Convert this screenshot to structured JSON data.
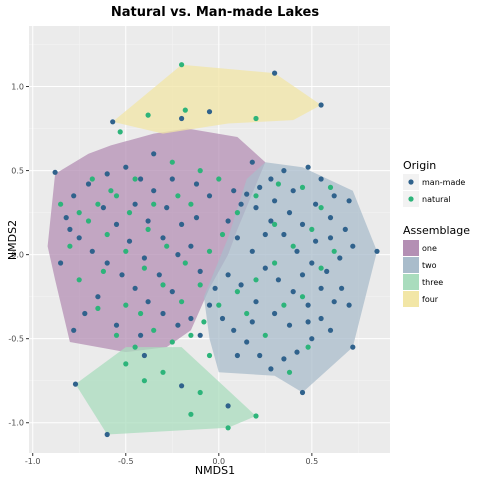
{
  "chart_data": {
    "type": "scatter",
    "title": "Natural vs. Man-made Lakes",
    "xlabel": "NMDS1",
    "ylabel": "NMDS2",
    "xlim": [
      -1.02,
      0.92
    ],
    "ylim": [
      -1.18,
      1.36
    ],
    "x_ticks": [
      -1.0,
      -0.5,
      0.0,
      0.5
    ],
    "x_tick_labels": [
      "-1.0",
      "-0.5",
      "0.0",
      "0.5"
    ],
    "y_ticks": [
      -1.0,
      -0.5,
      0.0,
      0.5,
      1.0
    ],
    "y_tick_labels": [
      "-1.0",
      "-0.5",
      "0.0",
      "0.5",
      "1.0"
    ],
    "grid": true,
    "panel_background": "#ebebeb",
    "legend_placement": "right",
    "origin_legend": {
      "title": "Origin",
      "entries": [
        {
          "label": "man-made",
          "color": "#30628c"
        },
        {
          "label": "natural",
          "color": "#2db47a"
        }
      ]
    },
    "assemblage_legend": {
      "title": "Assemblage",
      "entries": [
        {
          "label": "one",
          "color": "#b48fb4"
        },
        {
          "label": "two",
          "color": "#a9bccb"
        },
        {
          "label": "three",
          "color": "#a9dcbd"
        },
        {
          "label": "four",
          "color": "#f2e6a6"
        }
      ]
    },
    "hulls": [
      {
        "name": "one",
        "color": "#b48fb4",
        "points": [
          [
            -0.58,
            0.65
          ],
          [
            -0.35,
            0.72
          ],
          [
            -0.17,
            0.75
          ],
          [
            0.1,
            0.7
          ],
          [
            0.25,
            0.55
          ],
          [
            0.1,
            0.15
          ],
          [
            0.05,
            0.0
          ],
          [
            -0.05,
            -0.2
          ],
          [
            -0.15,
            -0.45
          ],
          [
            -0.28,
            -0.55
          ],
          [
            -0.5,
            -0.58
          ],
          [
            -0.8,
            -0.52
          ],
          [
            -0.88,
            -0.15
          ],
          [
            -0.92,
            0.05
          ],
          [
            -0.88,
            0.48
          ],
          [
            -0.7,
            0.6
          ]
        ]
      },
      {
        "name": "two",
        "color": "#a9bccb",
        "points": [
          [
            0.25,
            0.55
          ],
          [
            0.45,
            0.52
          ],
          [
            0.72,
            0.38
          ],
          [
            0.85,
            0.02
          ],
          [
            0.72,
            -0.55
          ],
          [
            0.45,
            -0.82
          ],
          [
            0.3,
            -0.72
          ],
          [
            0.0,
            -0.7
          ],
          [
            -0.05,
            -0.5
          ],
          [
            -0.08,
            -0.25
          ],
          [
            0.05,
            0.1
          ],
          [
            0.15,
            0.45
          ]
        ]
      },
      {
        "name": "three",
        "color": "#a9dcbd",
        "points": [
          [
            -0.77,
            -0.77
          ],
          [
            -0.5,
            -0.55
          ],
          [
            -0.2,
            -0.55
          ],
          [
            0.2,
            -0.96
          ],
          [
            0.05,
            -1.03
          ],
          [
            -0.6,
            -1.07
          ]
        ]
      },
      {
        "name": "four",
        "color": "#f2e6a6",
        "points": [
          [
            -0.57,
            0.79
          ],
          [
            -0.2,
            1.13
          ],
          [
            0.3,
            1.08
          ],
          [
            0.55,
            0.89
          ],
          [
            0.4,
            0.8
          ],
          [
            0.05,
            0.78
          ],
          [
            -0.3,
            0.72
          ]
        ]
      }
    ],
    "series": [
      {
        "name": "man-made",
        "color": "#30628c",
        "points": [
          [
            0.3,
            1.08
          ],
          [
            0.55,
            0.89
          ],
          [
            -0.05,
            0.85
          ],
          [
            -0.57,
            0.79
          ],
          [
            -0.2,
            0.81
          ],
          [
            -0.88,
            0.49
          ],
          [
            -0.35,
            0.6
          ],
          [
            -0.12,
            0.42
          ],
          [
            0.18,
            0.55
          ],
          [
            0.85,
            0.02
          ],
          [
            0.72,
            -0.55
          ],
          [
            0.45,
            -0.82
          ],
          [
            0.62,
            0.35
          ],
          [
            0.7,
            0.32
          ],
          [
            0.55,
            0.45
          ],
          [
            0.48,
            0.52
          ],
          [
            0.35,
            0.5
          ],
          [
            0.28,
            0.45
          ],
          [
            0.4,
            0.38
          ],
          [
            0.52,
            0.3
          ],
          [
            0.6,
            0.22
          ],
          [
            0.68,
            0.15
          ],
          [
            0.72,
            0.05
          ],
          [
            0.65,
            -0.02
          ],
          [
            0.58,
            -0.1
          ],
          [
            0.5,
            -0.05
          ],
          [
            0.42,
            0.02
          ],
          [
            0.35,
            0.12
          ],
          [
            0.28,
            0.2
          ],
          [
            0.2,
            0.28
          ],
          [
            0.12,
            0.3
          ],
          [
            0.05,
            0.2
          ],
          [
            0.1,
            0.1
          ],
          [
            0.18,
            0.02
          ],
          [
            0.25,
            -0.08
          ],
          [
            0.32,
            -0.15
          ],
          [
            0.4,
            -0.22
          ],
          [
            0.48,
            -0.3
          ],
          [
            0.55,
            -0.38
          ],
          [
            0.6,
            -0.45
          ],
          [
            0.5,
            -0.5
          ],
          [
            0.42,
            -0.58
          ],
          [
            0.35,
            -0.62
          ],
          [
            0.28,
            -0.68
          ],
          [
            0.22,
            -0.6
          ],
          [
            0.15,
            -0.52
          ],
          [
            0.08,
            -0.45
          ],
          [
            0.02,
            -0.38
          ],
          [
            -0.05,
            -0.3
          ],
          [
            -0.02,
            -0.2
          ],
          [
            0.05,
            -0.12
          ],
          [
            0.12,
            -0.18
          ],
          [
            0.2,
            -0.28
          ],
          [
            0.3,
            -0.35
          ],
          [
            0.38,
            -0.42
          ],
          [
            0.45,
            -0.12
          ],
          [
            0.52,
            0.08
          ],
          [
            0.45,
            0.18
          ],
          [
            0.38,
            0.25
          ],
          [
            0.3,
            0.32
          ],
          [
            0.22,
            0.4
          ],
          [
            0.15,
            0.36
          ],
          [
            0.08,
            0.38
          ],
          [
            0.6,
            0.1
          ],
          [
            0.66,
            -0.2
          ],
          [
            0.7,
            -0.3
          ],
          [
            0.62,
            -0.28
          ],
          [
            0.55,
            -0.2
          ],
          [
            0.48,
            -0.4
          ],
          [
            0.25,
            0.12
          ],
          [
            0.18,
            -0.4
          ],
          [
            0.1,
            -0.6
          ],
          [
            -0.1,
            -0.1
          ],
          [
            -0.15,
            0.05
          ],
          [
            -0.2,
            0.18
          ],
          [
            -0.28,
            0.28
          ],
          [
            -0.35,
            0.38
          ],
          [
            -0.42,
            0.45
          ],
          [
            -0.5,
            0.52
          ],
          [
            -0.6,
            0.48
          ],
          [
            -0.7,
            0.42
          ],
          [
            -0.78,
            0.35
          ],
          [
            -0.82,
            0.22
          ],
          [
            -0.75,
            0.1
          ],
          [
            -0.68,
            0.02
          ],
          [
            -0.6,
            -0.05
          ],
          [
            -0.52,
            -0.12
          ],
          [
            -0.45,
            -0.2
          ],
          [
            -0.38,
            -0.28
          ],
          [
            -0.3,
            -0.35
          ],
          [
            -0.22,
            -0.42
          ],
          [
            -0.15,
            -0.38
          ],
          [
            -0.25,
            -0.22
          ],
          [
            -0.32,
            -0.12
          ],
          [
            -0.4,
            -0.02
          ],
          [
            -0.48,
            0.08
          ],
          [
            -0.55,
            0.18
          ],
          [
            -0.62,
            0.28
          ],
          [
            -0.45,
            0.3
          ],
          [
            -0.38,
            0.2
          ],
          [
            -0.3,
            0.1
          ],
          [
            -0.22,
            0.0
          ],
          [
            -0.12,
            0.22
          ],
          [
            -0.05,
            0.35
          ],
          [
            -0.25,
            0.45
          ],
          [
            -0.65,
            -0.25
          ],
          [
            -0.72,
            -0.35
          ],
          [
            -0.78,
            -0.45
          ],
          [
            -0.55,
            -0.42
          ],
          [
            -0.42,
            -0.48
          ],
          [
            -0.85,
            -0.05
          ],
          [
            -0.8,
            0.15
          ],
          [
            -0.1,
            -0.48
          ],
          [
            -0.77,
            -0.77
          ],
          [
            -0.6,
            -1.07
          ],
          [
            -0.4,
            -0.6
          ],
          [
            -0.2,
            -0.78
          ],
          [
            0.05,
            -0.9
          ]
        ]
      },
      {
        "name": "natural",
        "color": "#2db47a",
        "points": [
          [
            -0.2,
            1.13
          ],
          [
            -0.38,
            0.83
          ],
          [
            -0.53,
            0.73
          ],
          [
            0.2,
            0.81
          ],
          [
            -0.18,
            0.86
          ],
          [
            -0.45,
            0.45
          ],
          [
            -0.25,
            0.55
          ],
          [
            -0.1,
            0.5
          ],
          [
            0.0,
            0.45
          ],
          [
            -0.55,
            0.35
          ],
          [
            -0.65,
            0.3
          ],
          [
            -0.7,
            0.2
          ],
          [
            -0.6,
            0.12
          ],
          [
            -0.5,
            0.02
          ],
          [
            -0.4,
            -0.08
          ],
          [
            -0.3,
            -0.18
          ],
          [
            -0.2,
            -0.28
          ],
          [
            -0.1,
            -0.18
          ],
          [
            -0.18,
            -0.05
          ],
          [
            -0.28,
            0.05
          ],
          [
            -0.38,
            0.15
          ],
          [
            -0.48,
            0.25
          ],
          [
            -0.58,
            0.38
          ],
          [
            -0.68,
            0.45
          ],
          [
            -0.75,
            0.25
          ],
          [
            -0.8,
            0.05
          ],
          [
            -0.75,
            -0.15
          ],
          [
            -0.65,
            -0.32
          ],
          [
            -0.55,
            -0.48
          ],
          [
            -0.45,
            -0.55
          ],
          [
            -0.35,
            -0.45
          ],
          [
            -0.25,
            -0.52
          ],
          [
            -0.15,
            -0.48
          ],
          [
            -0.08,
            -0.4
          ],
          [
            0.0,
            -0.3
          ],
          [
            0.1,
            -0.22
          ],
          [
            0.2,
            -0.15
          ],
          [
            0.3,
            -0.05
          ],
          [
            0.4,
            0.05
          ],
          [
            0.5,
            0.15
          ],
          [
            0.55,
            0.28
          ],
          [
            0.45,
            0.4
          ],
          [
            0.32,
            0.42
          ],
          [
            0.2,
            0.35
          ],
          [
            0.1,
            0.25
          ],
          [
            0.02,
            0.12
          ],
          [
            -0.05,
            0.02
          ],
          [
            0.15,
            -0.35
          ],
          [
            0.25,
            -0.48
          ],
          [
            0.35,
            -0.3
          ],
          [
            0.45,
            -0.25
          ],
          [
            0.55,
            -0.08
          ],
          [
            0.62,
            0.02
          ],
          [
            0.3,
            0.18
          ],
          [
            -0.35,
            0.3
          ],
          [
            -0.15,
            0.3
          ],
          [
            -0.42,
            -0.35
          ],
          [
            -0.62,
            -0.1
          ],
          [
            -0.5,
            -0.3
          ],
          [
            -0.85,
            0.3
          ],
          [
            0.2,
            -0.96
          ],
          [
            0.05,
            -1.03
          ],
          [
            -0.1,
            -0.82
          ],
          [
            -0.3,
            -0.7
          ],
          [
            -0.5,
            -0.65
          ],
          [
            -0.15,
            -0.95
          ],
          [
            -0.4,
            -0.75
          ],
          [
            0.6,
            0.4
          ],
          [
            0.48,
            -0.55
          ],
          [
            0.38,
            -0.7
          ],
          [
            -0.05,
            -0.6
          ],
          [
            -0.22,
            0.35
          ]
        ]
      }
    ]
  }
}
